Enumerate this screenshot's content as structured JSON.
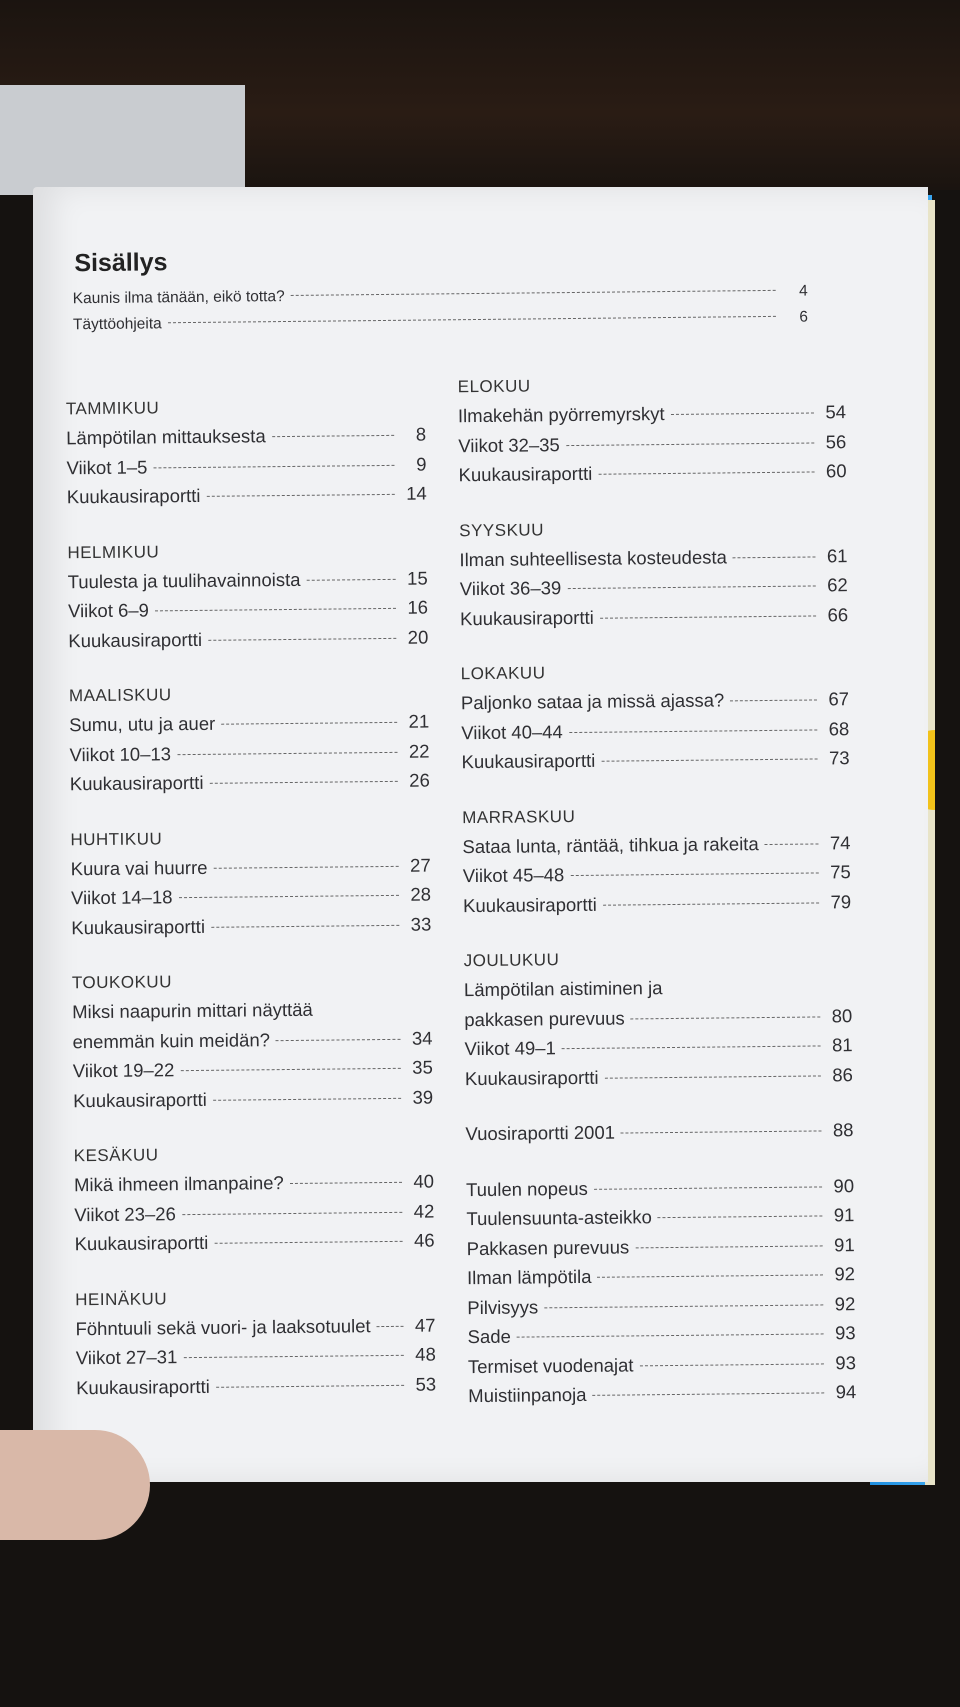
{
  "title": "Sisällys",
  "intro": [
    {
      "title": "Kaunis ilma tänään, eikö totta?",
      "page": "4"
    },
    {
      "title": "Täyttöohjeita",
      "page": "6"
    }
  ],
  "left_column": [
    {
      "heading": "TAMMIKUU",
      "entries": [
        {
          "title": "Lämpötilan mittauksesta",
          "page": "8"
        },
        {
          "title": "Viikot 1–5",
          "page": "9"
        },
        {
          "title": "Kuukausiraportti",
          "page": "14"
        }
      ]
    },
    {
      "heading": "HELMIKUU",
      "entries": [
        {
          "title": "Tuulesta ja tuulihavainnoista",
          "page": "15"
        },
        {
          "title": "Viikot 6–9",
          "page": "16"
        },
        {
          "title": "Kuukausiraportti",
          "page": "20"
        }
      ]
    },
    {
      "heading": "MAALISKUU",
      "entries": [
        {
          "title": "Sumu, utu ja auer",
          "page": "21"
        },
        {
          "title": "Viikot 10–13",
          "page": "22"
        },
        {
          "title": "Kuukausiraportti",
          "page": "26"
        }
      ]
    },
    {
      "heading": "HUHTIKUU",
      "entries": [
        {
          "title": "Kuura vai huurre",
          "page": "27"
        },
        {
          "title": "Viikot 14–18",
          "page": "28"
        },
        {
          "title": "Kuukausiraportti",
          "page": "33"
        }
      ]
    },
    {
      "heading": "TOUKOKUU",
      "entries": [
        {
          "title": "Miksi naapurin mittari näyttää",
          "page": ""
        },
        {
          "title": "enemmän kuin meidän?",
          "page": "34"
        },
        {
          "title": "Viikot 19–22",
          "page": "35"
        },
        {
          "title": "Kuukausiraportti",
          "page": "39"
        }
      ]
    },
    {
      "heading": "KESÄKUU",
      "entries": [
        {
          "title": "Mikä ihmeen ilmanpaine?",
          "page": "40"
        },
        {
          "title": "Viikot 23–26",
          "page": "42"
        },
        {
          "title": "Kuukausiraportti",
          "page": "46"
        }
      ]
    },
    {
      "heading": "HEINÄKUU",
      "entries": [
        {
          "title": "Föhntuuli sekä vuori- ja laaksotuulet",
          "page": "47"
        },
        {
          "title": "Viikot 27–31",
          "page": "48"
        },
        {
          "title": "Kuukausiraportti",
          "page": "53"
        }
      ]
    }
  ],
  "right_column": [
    {
      "heading": "ELOKUU",
      "entries": [
        {
          "title": "Ilmakehän pyörremyrskyt",
          "page": "54"
        },
        {
          "title": "Viikot 32–35",
          "page": "56"
        },
        {
          "title": "Kuukausiraportti",
          "page": "60"
        }
      ]
    },
    {
      "heading": "SYYSKUU",
      "entries": [
        {
          "title": "Ilman suhteellisesta kosteudesta",
          "page": "61"
        },
        {
          "title": "Viikot 36–39",
          "page": "62"
        },
        {
          "title": "Kuukausiraportti",
          "page": "66"
        }
      ]
    },
    {
      "heading": "LOKAKUU",
      "entries": [
        {
          "title": "Paljonko sataa ja missä ajassa?",
          "page": "67"
        },
        {
          "title": "Viikot 40–44",
          "page": "68"
        },
        {
          "title": "Kuukausiraportti",
          "page": "73"
        }
      ]
    },
    {
      "heading": "MARRASKUU",
      "entries": [
        {
          "title": "Sataa lunta, räntää, tihkua ja rakeita",
          "page": "74"
        },
        {
          "title": "Viikot 45–48",
          "page": "75"
        },
        {
          "title": "Kuukausiraportti",
          "page": "79"
        }
      ]
    },
    {
      "heading": "JOULUKUU",
      "entries": [
        {
          "title": "Lämpötilan aistiminen ja",
          "page": ""
        },
        {
          "title": "pakkasen purevuus",
          "page": "80"
        },
        {
          "title": "Viikot 49–1",
          "page": "81"
        },
        {
          "title": "Kuukausiraportti",
          "page": "86"
        }
      ]
    },
    {
      "heading": "",
      "entries": [
        {
          "title": "Vuosiraportti 2001",
          "page": "88"
        }
      ]
    },
    {
      "heading": "",
      "entries": [
        {
          "title": "Tuulen nopeus",
          "page": "90"
        },
        {
          "title": "Tuulensuunta-asteikko",
          "page": "91"
        },
        {
          "title": "Pakkasen purevuus",
          "page": "91"
        },
        {
          "title": "Ilman lämpötila",
          "page": "92"
        },
        {
          "title": "Pilvisyys",
          "page": "92"
        },
        {
          "title": "Sade",
          "page": "93"
        },
        {
          "title": "Termiset vuodenajat",
          "page": "93"
        },
        {
          "title": "Muistiinpanoja",
          "page": "94"
        }
      ]
    }
  ]
}
